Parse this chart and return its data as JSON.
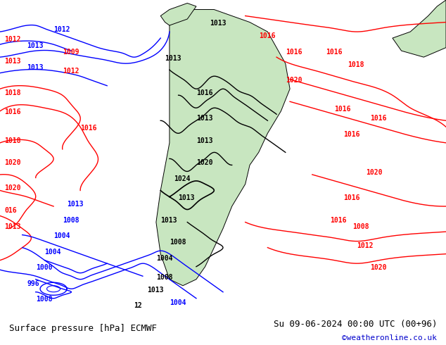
{
  "title_left": "Surface pressure [hPa] ECMWF",
  "title_right": "Su 09-06-2024 00:00 UTC (00+96)",
  "credit": "©weatheronline.co.uk",
  "bg_color": "#d0e8f0",
  "land_color": "#c8e6c0",
  "fig_width": 6.34,
  "fig_height": 4.9,
  "dpi": 100
}
